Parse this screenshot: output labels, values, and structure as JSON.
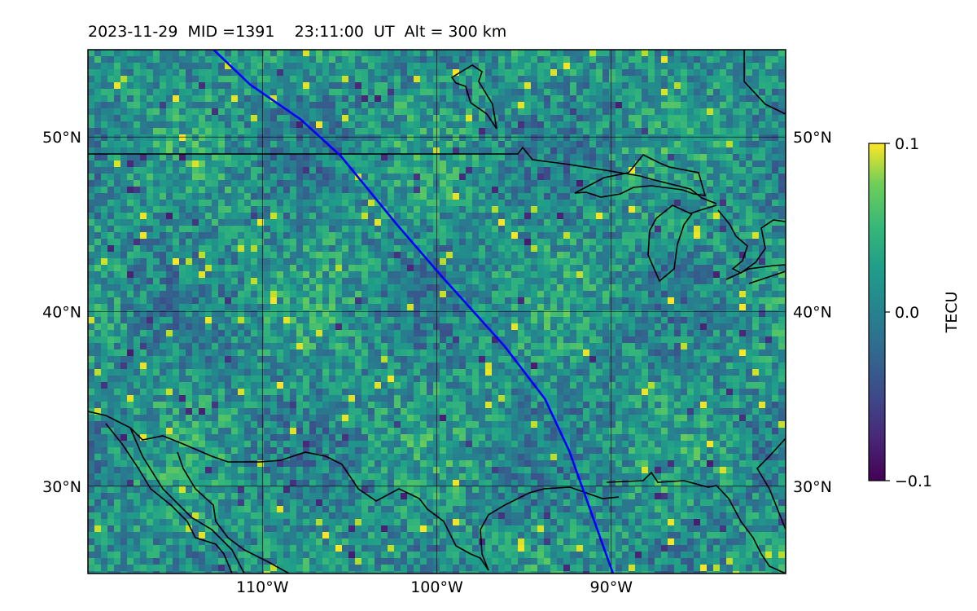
{
  "title": {
    "date": "2023-11-29",
    "mid": "MID =1391",
    "time": "23:11:00  UT",
    "altitude": "Alt = 300 km"
  },
  "map": {
    "lon_range": [
      -120,
      -80
    ],
    "lat_range": [
      25,
      55
    ],
    "gridlines": true,
    "lon_ticks": [
      {
        "value": -110,
        "label": "110°W"
      },
      {
        "value": -100,
        "label": "100°W"
      },
      {
        "value": -90,
        "label": "90°W"
      }
    ],
    "lat_ticks": [
      {
        "value": 30,
        "label": "30°N"
      },
      {
        "value": 40,
        "label": "40°N"
      },
      {
        "value": 50,
        "label": "50°N"
      }
    ],
    "track_color": "#0000ff",
    "track": [
      [
        -112.8,
        55
      ],
      [
        -110.7,
        53
      ],
      [
        -107.8,
        51
      ],
      [
        -105.5,
        48.9
      ],
      [
        -102.3,
        45
      ],
      [
        -99.7,
        42
      ],
      [
        -96.1,
        38
      ],
      [
        -93.8,
        35
      ],
      [
        -92.4,
        32
      ],
      [
        -89.9,
        25
      ]
    ]
  },
  "colorbar": {
    "label": "TECU",
    "min": -0.1,
    "max": 0.1,
    "ticks": [
      {
        "value": 0.1,
        "label": "0.1"
      },
      {
        "value": 0.0,
        "label": "0.0"
      },
      {
        "value": -0.1,
        "label": "−0.1"
      }
    ],
    "colormap": "viridis"
  }
}
